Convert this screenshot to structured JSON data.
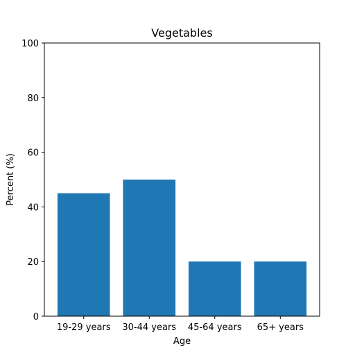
{
  "chart_data": {
    "type": "bar",
    "title": "Vegetables",
    "xlabel": "Age",
    "ylabel": "Percent (%)",
    "categories": [
      "19-29 years",
      "30-44 years",
      "45-64 years",
      "65+ years"
    ],
    "values": [
      45,
      50,
      20,
      20
    ],
    "ylim": [
      0,
      100
    ],
    "yticks": [
      0,
      20,
      40,
      60,
      80,
      100
    ],
    "grid": false,
    "legend": "none",
    "bar_color": "#1f77b4"
  }
}
